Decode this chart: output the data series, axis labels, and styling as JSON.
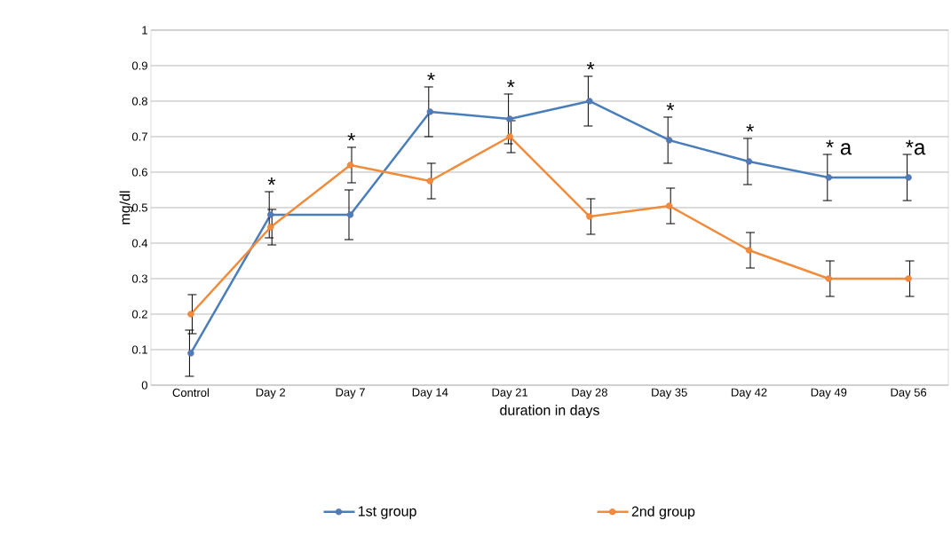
{
  "chart_data": {
    "type": "line",
    "xlabel": "duration in days",
    "ylabel": "mg/dl",
    "categories": [
      "Control",
      "Day 2",
      "Day 7",
      "Day 14",
      "Day 21",
      "Day 28",
      "Day 35",
      "Day 42",
      "Day 49",
      "Day 56"
    ],
    "series": [
      {
        "name": "1st group",
        "color": "#4a7ebb",
        "values": [
          0.09,
          0.48,
          0.48,
          0.77,
          0.75,
          0.8,
          0.69,
          0.63,
          0.585,
          0.585
        ],
        "errors": [
          0.065,
          0.065,
          0.07,
          0.07,
          0.07,
          0.07,
          0.065,
          0.065,
          0.065,
          0.065
        ]
      },
      {
        "name": "2nd group",
        "color": "#f08c3c",
        "values": [
          0.2,
          0.445,
          0.62,
          0.575,
          0.7,
          0.475,
          0.505,
          0.38,
          0.3,
          0.3
        ],
        "errors": [
          0.055,
          0.05,
          0.05,
          0.05,
          0.045,
          0.05,
          0.05,
          0.05,
          0.05,
          0.05
        ]
      }
    ],
    "ylim": [
      0,
      1
    ],
    "yticks": [
      0,
      0.1,
      0.2,
      0.3,
      0.4,
      0.5,
      0.6,
      0.7,
      0.8,
      0.9,
      1
    ],
    "grid": "y",
    "legend": "bottom",
    "marker": "circle",
    "line_style": "solid",
    "annotations": [
      "*",
      "*",
      "*",
      "*",
      "*",
      "*",
      "*",
      "* a",
      "*a"
    ]
  }
}
